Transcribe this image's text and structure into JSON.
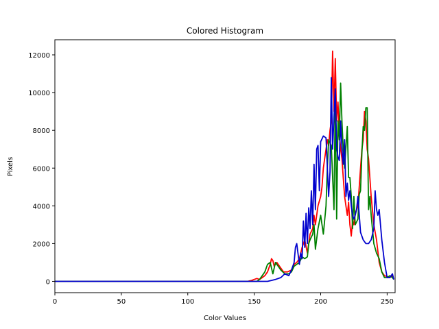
{
  "chart_data": {
    "type": "line",
    "title": "Colored Histogram",
    "xlabel": "Color Values",
    "ylabel": "Pixels",
    "xlim": [
      0,
      256
    ],
    "ylim": [
      -600,
      12800
    ],
    "xticks": [
      0,
      50,
      100,
      150,
      200,
      250
    ],
    "yticks": [
      0,
      2000,
      4000,
      6000,
      8000,
      10000,
      12000
    ],
    "xtick_labels": [
      "0",
      "50",
      "100",
      "150",
      "200",
      "250"
    ],
    "ytick_labels": [
      "0",
      "2000",
      "4000",
      "6000",
      "8000",
      "10000",
      "12000"
    ],
    "grid": false,
    "series": [
      {
        "color": "#ff0000",
        "x": [
          0,
          145,
          148,
          150,
          152,
          154,
          156,
          158,
          160,
          162,
          163,
          164,
          165,
          167,
          170,
          172,
          175,
          178,
          180,
          182,
          184,
          186,
          188,
          190,
          192,
          194,
          195,
          196,
          198,
          200,
          201,
          202,
          203,
          204,
          205,
          206,
          207,
          208,
          209,
          210,
          211,
          212,
          213,
          214,
          215,
          216,
          217,
          218,
          219,
          220,
          221,
          222,
          223,
          224,
          225,
          226,
          227,
          228,
          229,
          230,
          231,
          232,
          233,
          234,
          235,
          236,
          237,
          238,
          240,
          242,
          244,
          246,
          248,
          250,
          252,
          254,
          255
        ],
        "y": [
          0,
          0,
          50,
          100,
          150,
          100,
          200,
          300,
          500,
          900,
          1200,
          1100,
          800,
          1000,
          700,
          500,
          500,
          600,
          900,
          1000,
          1200,
          1800,
          2200,
          1500,
          2500,
          2800,
          3500,
          3000,
          4000,
          4500,
          5000,
          6000,
          6500,
          7000,
          7500,
          7200,
          8000,
          8500,
          12200,
          9000,
          11800,
          8500,
          9500,
          8000,
          7000,
          6500,
          5500,
          4500,
          4000,
          3500,
          4200,
          3000,
          2400,
          3200,
          3000,
          3600,
          3800,
          4000,
          5000,
          6000,
          7000,
          7500,
          9000,
          8500,
          7000,
          6500,
          5500,
          4500,
          3000,
          2200,
          1000,
          500,
          300,
          250,
          200,
          300,
          100
        ]
      },
      {
        "color": "#008000",
        "x": [
          0,
          152,
          154,
          156,
          158,
          160,
          162,
          164,
          166,
          168,
          170,
          173,
          176,
          178,
          180,
          182,
          184,
          186,
          188,
          190,
          191,
          192,
          194,
          195,
          196,
          198,
          200,
          202,
          204,
          205,
          206,
          208,
          210,
          211,
          212,
          213,
          214,
          215,
          216,
          217,
          218,
          220,
          221,
          222,
          223,
          224,
          225,
          226,
          228,
          229,
          230,
          231,
          232,
          233,
          234,
          235,
          236,
          237,
          238,
          240,
          242,
          244,
          246,
          248,
          250,
          252,
          254,
          255
        ],
        "y": [
          0,
          0,
          100,
          300,
          500,
          900,
          1000,
          400,
          1000,
          800,
          600,
          400,
          400,
          500,
          800,
          900,
          1000,
          1300,
          1200,
          1300,
          2000,
          2200,
          2500,
          3000,
          1700,
          2800,
          3500,
          2500,
          4000,
          6000,
          7500,
          7200,
          3800,
          9800,
          3300,
          8500,
          7500,
          10500,
          8500,
          7000,
          6000,
          8200,
          5500,
          5500,
          4500,
          2800,
          4500,
          3000,
          3300,
          4600,
          4800,
          6800,
          8200,
          8000,
          9200,
          9200,
          3800,
          4500,
          3500,
          2000,
          1500,
          1200,
          500,
          200,
          200,
          300,
          200,
          100
        ]
      },
      {
        "color": "#0000cd",
        "x": [
          0,
          160,
          163,
          166,
          170,
          173,
          176,
          178,
          180,
          181,
          182,
          184,
          185,
          186,
          187,
          188,
          189,
          190,
          191,
          192,
          193,
          194,
          195,
          196,
          197,
          198,
          199,
          200,
          202,
          204,
          206,
          207,
          208,
          209,
          210,
          211,
          212,
          213,
          214,
          215,
          216,
          217,
          218,
          219,
          220,
          221,
          222,
          223,
          224,
          225,
          226,
          227,
          228,
          230,
          232,
          234,
          236,
          238,
          240,
          241,
          242,
          243,
          244,
          246,
          248,
          250,
          252,
          254,
          255
        ],
        "y": [
          0,
          0,
          50,
          100,
          200,
          400,
          300,
          600,
          1000,
          1800,
          2000,
          900,
          1500,
          1200,
          3200,
          1800,
          3600,
          2000,
          3900,
          2800,
          4800,
          3000,
          6200,
          3800,
          7000,
          7200,
          4800,
          7400,
          7700,
          7600,
          4500,
          5800,
          10800,
          7000,
          8700,
          10200,
          7100,
          6600,
          6400,
          8500,
          7000,
          6200,
          7500,
          4500,
          5200,
          4300,
          4800,
          4000,
          3500,
          3300,
          3500,
          3800,
          4500,
          2600,
          2200,
          2000,
          2000,
          2200,
          2800,
          4800,
          3800,
          3500,
          3800,
          2200,
          1000,
          200,
          200,
          400,
          100
        ]
      }
    ]
  }
}
